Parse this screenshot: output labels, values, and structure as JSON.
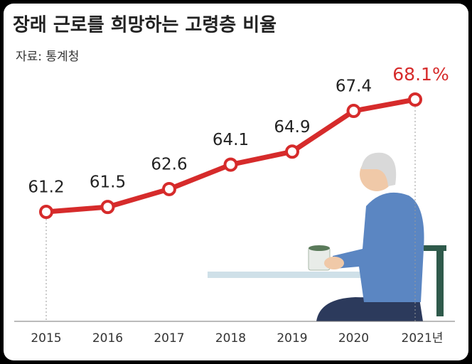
{
  "chart_data": {
    "type": "line",
    "title": "장래 근로를 희망하는 고령층 비율",
    "source": "자료: 통계청",
    "categories": [
      "2015",
      "2016",
      "2017",
      "2018",
      "2019",
      "2020",
      "2021년"
    ],
    "values": [
      61.2,
      61.5,
      62.6,
      64.1,
      64.9,
      67.4,
      68.1
    ],
    "value_labels": [
      "61.2",
      "61.5",
      "62.6",
      "64.1",
      "64.9",
      "67.4",
      "68.1%"
    ],
    "color": "#d62b2b"
  }
}
